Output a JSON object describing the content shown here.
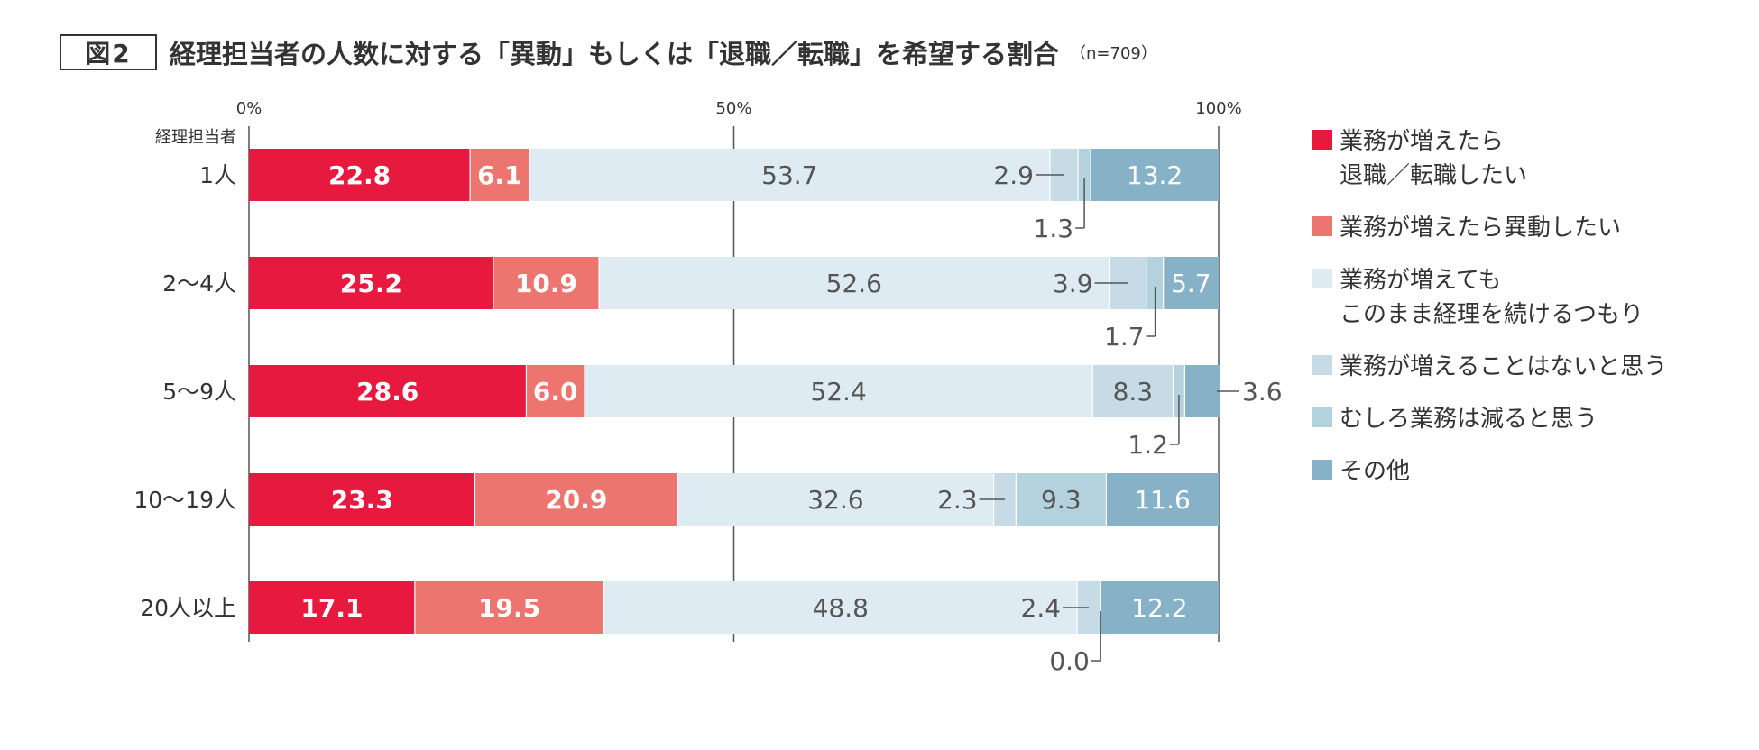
{
  "header": {
    "figure_label": "図2",
    "title": "経理担当者の人数に対する「異動」もしくは「退職／転職」を希望する割合",
    "sample_note": "（n=709）"
  },
  "chart_data": {
    "type": "bar",
    "orientation": "horizontal",
    "stacked": true,
    "percent_scale": true,
    "xlim": [
      0,
      100
    ],
    "x_ticks": [
      "0%",
      "50%",
      "100%"
    ],
    "y_axis_title": "経理担当者",
    "categories": [
      "1人",
      "2〜4人",
      "5〜9人",
      "10〜19人",
      "20人以上"
    ],
    "series": [
      {
        "name": "業務が増えたら\n退職／転職したい",
        "color": "#e8193f",
        "values": [
          22.8,
          25.2,
          28.6,
          23.3,
          17.1
        ]
      },
      {
        "name": "業務が増えたら異動したい",
        "color": "#ec756f",
        "values": [
          6.1,
          10.9,
          6.0,
          20.9,
          19.5
        ]
      },
      {
        "name": "業務が増えても\nこのまま経理を続けるつもり",
        "color": "#dfebf3",
        "values": [
          53.7,
          52.6,
          52.4,
          32.6,
          48.8
        ]
      },
      {
        "name": "業務が増えることはないと思う",
        "color": "#c6dbe6",
        "values": [
          2.9,
          3.9,
          8.3,
          2.3,
          2.4
        ]
      },
      {
        "name": "むしろ業務は減ると思う",
        "color": "#b4d1de",
        "values": [
          1.3,
          1.7,
          1.2,
          9.3,
          0.0
        ]
      },
      {
        "name": "その他",
        "color": "#87b1c6",
        "values": [
          13.2,
          5.7,
          3.6,
          11.6,
          12.2
        ]
      }
    ],
    "legend_position": "right",
    "grid": "vertical line at 50%"
  }
}
